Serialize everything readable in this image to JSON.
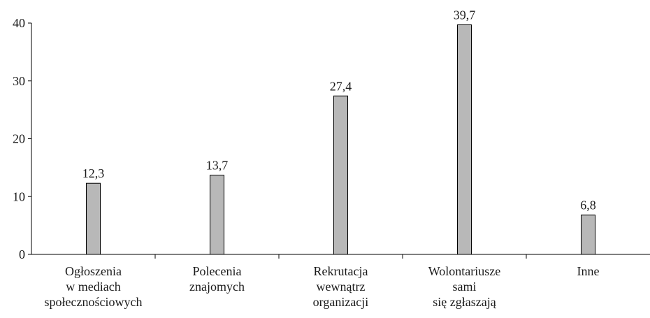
{
  "chart_data": {
    "type": "bar",
    "categories": [
      "Ogłoszenia\nw mediach\nspołecznościowych",
      "Polecenia\nznajomych",
      "Rekrutacja\nwewnątrz\norganizacji",
      "Wolontariusze\nsami\nsię zgłaszają",
      "Inne"
    ],
    "values": [
      12.3,
      13.7,
      27.4,
      39.7,
      6.8
    ],
    "value_labels": [
      "12,3",
      "13,7",
      "27,4",
      "39,7",
      "6,8"
    ],
    "color": "#b8b8b8",
    "ylim": [
      0,
      40
    ],
    "yticks": [
      0,
      10,
      20,
      30,
      40
    ],
    "grid": false
  }
}
